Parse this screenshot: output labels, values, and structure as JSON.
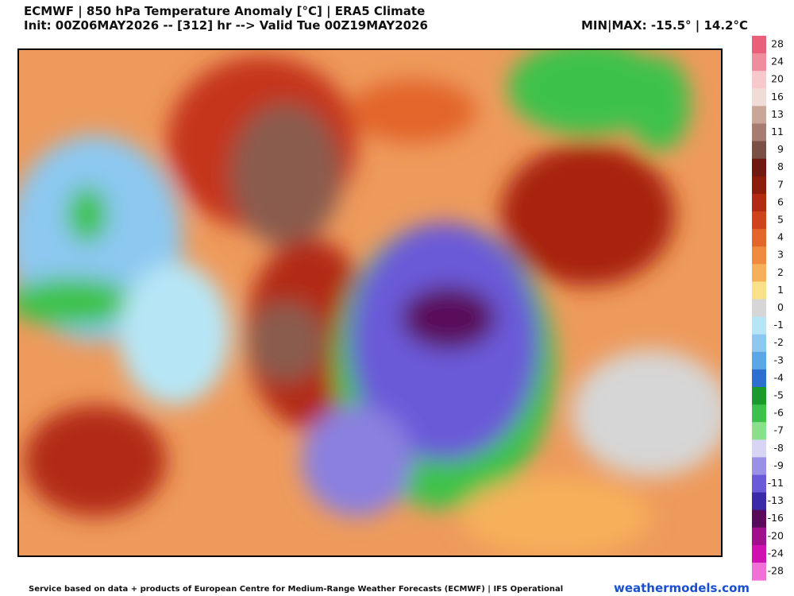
{
  "header": {
    "title": "ECMWF | 850 hPa Temperature Anomaly [°C] | ERA5 Climate",
    "subtitle": "Init: 00Z06MAY2026 -- [312] hr --> Valid Tue 00Z19MAY2026",
    "minmax": "MIN|MAX: -15.5° | 14.2°C"
  },
  "colorbar": {
    "labels": [
      "28",
      "24",
      "20",
      "16",
      "13",
      "11",
      "9",
      "8",
      "7",
      "6",
      "5",
      "4",
      "3",
      "2",
      "1",
      "0",
      "-1",
      "-2",
      "-3",
      "-4",
      "-5",
      "-6",
      "-7",
      "-8",
      "-9",
      "-11",
      "-13",
      "-16",
      "-20",
      "-24",
      "-28"
    ],
    "colors": [
      "#e8607a",
      "#f08d9c",
      "#f7c8cc",
      "#f0dcd6",
      "#c9a59a",
      "#a67c70",
      "#7a5045",
      "#6e1a10",
      "#8c1c0c",
      "#b22a12",
      "#d0421a",
      "#e2652a",
      "#ef8a3e",
      "#f6b05a",
      "#fbe08a",
      "#d6d6d6",
      "#b6e6f6",
      "#8cc8f0",
      "#5aa6e6",
      "#2c6fd0",
      "#1a9a2a",
      "#3cc24a",
      "#8ae08a",
      "#d8d4f4",
      "#9a90e6",
      "#6a5ad8",
      "#3a2aa8",
      "#5a0a5a",
      "#a0108c",
      "#d010b0",
      "#f070d8"
    ]
  },
  "footer": {
    "credit": "Service based on data + products of European Centre for Medium-Range Weather Forecasts (ECMWF) | IFS Operational",
    "brand": "weathermodels.com"
  }
}
